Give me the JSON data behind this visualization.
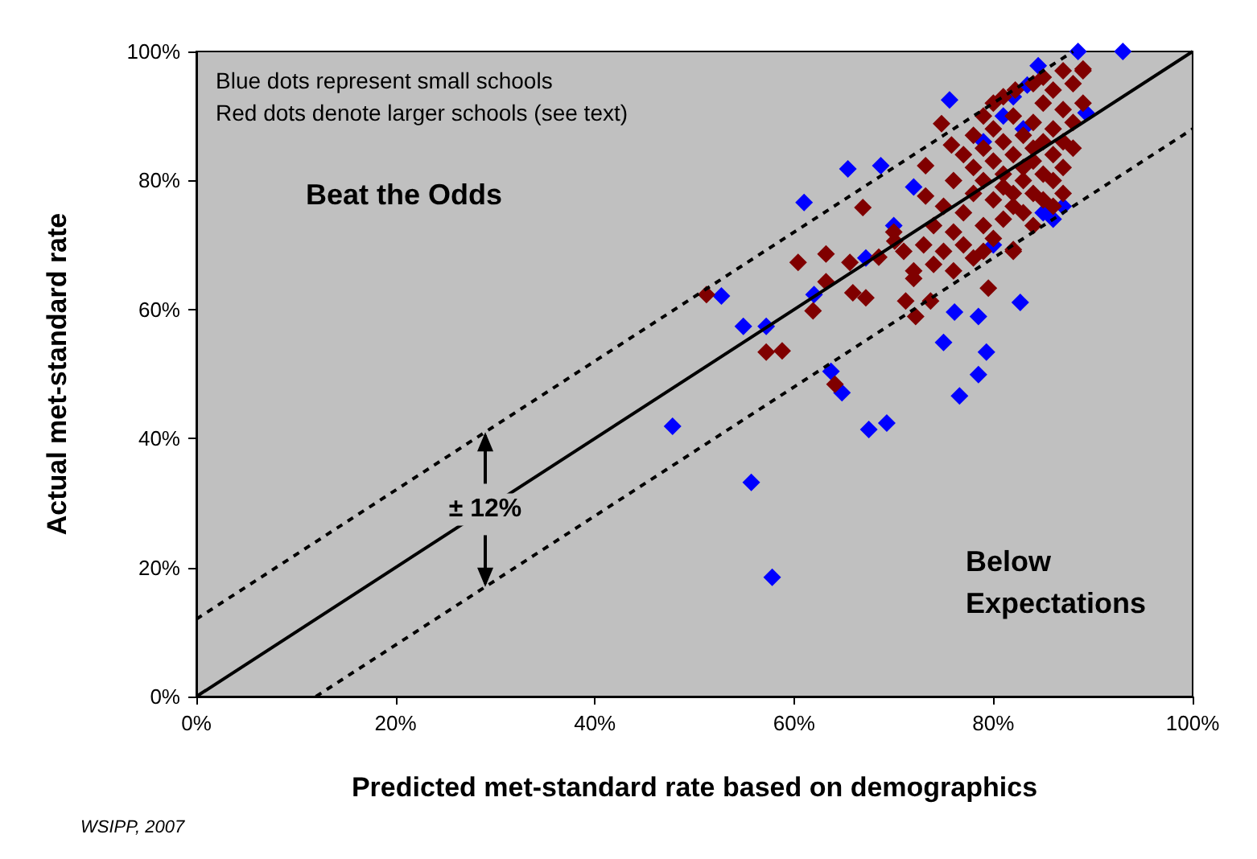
{
  "chart_data": {
    "type": "scatter",
    "xlabel": "Predicted met-standard rate based on demographics",
    "ylabel": "Actual met-standard rate",
    "xlim": [
      0,
      100
    ],
    "ylim": [
      0,
      100
    ],
    "xticks": [
      {
        "value": 0,
        "label": "0%"
      },
      {
        "value": 20,
        "label": "20%"
      },
      {
        "value": 40,
        "label": "40%"
      },
      {
        "value": 60,
        "label": "60%"
      },
      {
        "value": 80,
        "label": "80%"
      },
      {
        "value": 100,
        "label": "100%"
      }
    ],
    "yticks": [
      {
        "value": 0,
        "label": "0%"
      },
      {
        "value": 20,
        "label": "20%"
      },
      {
        "value": 40,
        "label": "40%"
      },
      {
        "value": 60,
        "label": "60%"
      },
      {
        "value": 80,
        "label": "80%"
      },
      {
        "value": 100,
        "label": "100%"
      }
    ],
    "grid": false,
    "marker": "diamond",
    "series": [
      {
        "type": "line",
        "marker": "none",
        "color": "#000000",
        "line_style": "solid",
        "x": [
          0,
          100
        ],
        "values": [
          0,
          100
        ]
      },
      {
        "type": "line",
        "marker": "none",
        "color": "#000000",
        "line_style": "dashed",
        "x": [
          0,
          88
        ],
        "values": [
          12,
          100
        ]
      },
      {
        "type": "line",
        "marker": "none",
        "color": "#000000",
        "line_style": "dashed",
        "x": [
          12,
          100
        ],
        "values": [
          0,
          88
        ]
      },
      {
        "color": "#0000ff",
        "x": [
          47.8,
          55.7,
          57.8,
          52.7,
          54.9,
          57.2,
          62,
          63.7,
          64.8,
          67.5,
          69.3,
          76.1,
          78.5,
          82.7,
          75,
          79.3,
          78.5,
          76.6,
          84.5,
          88.5,
          93,
          75.6,
          89.3,
          82,
          83.4,
          65.4,
          68.7,
          61,
          67.2,
          70,
          72,
          86,
          87,
          80,
          85,
          83,
          79,
          81
        ],
        "values": [
          41.9,
          33.2,
          18.5,
          62.1,
          57.4,
          57.4,
          62.3,
          50.4,
          47.1,
          41.4,
          42.4,
          59.6,
          58.9,
          61.1,
          54.9,
          53.4,
          49.9,
          46.6,
          97.8,
          100,
          100,
          92.5,
          90.5,
          93,
          94.8,
          81.8,
          82.3,
          76.6,
          68,
          73,
          79,
          74,
          76,
          70,
          75,
          88,
          86,
          90
        ]
      },
      {
        "color": "#800000",
        "x": [
          76,
          77,
          78,
          78,
          79,
          79,
          80,
          80,
          80,
          81,
          81,
          81,
          82,
          82,
          82,
          83,
          83,
          83,
          84,
          84,
          84,
          85,
          85,
          85,
          86,
          86,
          86,
          87,
          87,
          88,
          89,
          77,
          79,
          80,
          81,
          82,
          83,
          84,
          85,
          86,
          87,
          88,
          78,
          79,
          80,
          81,
          82.2,
          84,
          76,
          77,
          75,
          74,
          73,
          74,
          72,
          71,
          70,
          75,
          76,
          78,
          79,
          86,
          87,
          82,
          84,
          88,
          89,
          85,
          87,
          51.2,
          57.2,
          58.8,
          61.9,
          64.1,
          60.4,
          63.2,
          63.2,
          65.9,
          67.2,
          71.2,
          72.2,
          72,
          73.7,
          79.5,
          82,
          89,
          74.8,
          75.8,
          73.2,
          73.2,
          65.6,
          68.5,
          70.1,
          66.9
        ],
        "values": [
          72,
          75,
          78,
          82,
          80,
          85,
          77,
          83,
          88,
          79,
          81,
          86,
          78,
          84,
          90,
          80,
          82,
          87,
          83,
          85,
          89,
          81,
          86,
          92,
          84,
          88,
          94,
          86,
          91,
          95,
          97,
          70,
          73,
          71,
          74,
          76,
          75,
          78,
          77,
          80,
          82,
          89,
          87,
          90,
          92,
          93,
          94,
          95,
          80,
          84,
          76,
          73,
          70,
          67,
          66,
          69,
          72,
          69,
          66,
          68,
          69,
          76,
          78,
          69,
          73,
          85,
          92,
          96,
          97,
          62.3,
          53.4,
          53.6,
          59.8,
          48.4,
          67.3,
          64.3,
          68.6,
          62.6,
          61.8,
          61.3,
          58.9,
          64.8,
          61.3,
          63.3,
          69.3,
          97.3,
          88.8,
          85.5,
          82.3,
          77.6,
          67.3,
          68.1,
          70.6,
          75.8
        ]
      }
    ],
    "annotations": [
      "Blue dots represent small schools\nRed dots denote larger schools (see text)",
      "WSIPP, 2007",
      "Beat the Odds",
      "Below\nExpectations",
      {
        "text": "± 12%",
        "x": 29,
        "y": 29
      }
    ]
  }
}
